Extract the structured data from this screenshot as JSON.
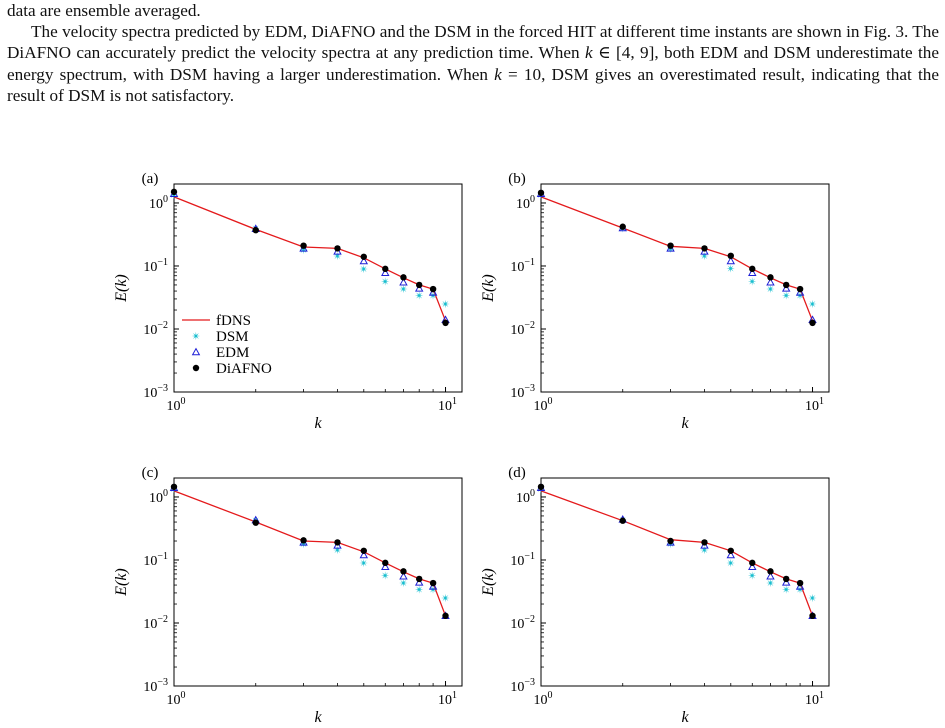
{
  "paragraph": {
    "line0": "data are ensemble averaged.",
    "p1_a": "The velocity spectra predicted by EDM, DiAFNO and the DSM in the forced HIT at different time instants are shown in Fig. 3. The DiAFNO can accurately predict the velocity spectra at any prediction time. When ",
    "p1_k1": "k",
    "p1_b": " ∈ [4, 9], both EDM and DSM underestimate the energy spectrum, with DSM having a larger underestimation. When ",
    "p1_k2": "k",
    "p1_c": " = 10, DSM gives an overestimated result, indicating that the result of DSM is not satisfactory."
  },
  "colors": {
    "fDNS": "#e41a1c",
    "DSM": "#17becf",
    "EDM": "#1f1fd6",
    "DiAFNO": "#000000"
  },
  "chart_data": [
    {
      "type": "line",
      "panel_label": "(a)",
      "xlabel": "k",
      "ylabel": "E(k)",
      "xscale": "log",
      "yscale": "log",
      "xlim": [
        1,
        11.5
      ],
      "ylim": [
        0.001,
        2
      ],
      "x_ticks": [
        "10^0",
        "10^1"
      ],
      "y_ticks": [
        "10^-3",
        "10^-2",
        "10^-1",
        "10^0"
      ],
      "legend": "lower-left",
      "x": [
        1,
        2,
        3,
        4,
        5,
        6,
        7,
        8,
        9,
        10
      ],
      "series": [
        {
          "name": "fDNS",
          "style": "line",
          "values": [
            1.25,
            0.38,
            0.2,
            0.19,
            0.135,
            0.09,
            0.065,
            0.05,
            0.043,
            0.0135
          ]
        },
        {
          "name": "DSM",
          "style": "star",
          "values": [
            1.35,
            0.39,
            0.18,
            0.145,
            0.09,
            0.057,
            0.043,
            0.034,
            0.034,
            0.025
          ]
        },
        {
          "name": "EDM",
          "style": "triangle",
          "values": [
            1.4,
            0.39,
            0.19,
            0.17,
            0.12,
            0.078,
            0.055,
            0.044,
            0.038,
            0.014
          ]
        },
        {
          "name": "DiAFNO",
          "style": "dot",
          "values": [
            1.5,
            0.37,
            0.21,
            0.19,
            0.14,
            0.09,
            0.066,
            0.05,
            0.043,
            0.0125
          ]
        }
      ]
    },
    {
      "type": "line",
      "panel_label": "(b)",
      "xlabel": "k",
      "ylabel": "E(k)",
      "xscale": "log",
      "yscale": "log",
      "xlim": [
        1,
        11.5
      ],
      "ylim": [
        0.001,
        2
      ],
      "x_ticks": [
        "10^0",
        "10^1"
      ],
      "y_ticks": [
        "10^-3",
        "10^-2",
        "10^-1",
        "10^0"
      ],
      "legend": "none",
      "x": [
        1,
        2,
        3,
        4,
        5,
        6,
        7,
        8,
        9,
        10
      ],
      "series": [
        {
          "name": "fDNS",
          "style": "line",
          "values": [
            1.25,
            0.4,
            0.205,
            0.19,
            0.14,
            0.09,
            0.065,
            0.05,
            0.043,
            0.0135
          ]
        },
        {
          "name": "DSM",
          "style": "star",
          "values": [
            1.35,
            0.39,
            0.185,
            0.145,
            0.092,
            0.057,
            0.043,
            0.034,
            0.034,
            0.025
          ]
        },
        {
          "name": "EDM",
          "style": "triangle",
          "values": [
            1.4,
            0.4,
            0.19,
            0.17,
            0.12,
            0.078,
            0.055,
            0.044,
            0.038,
            0.014
          ]
        },
        {
          "name": "DiAFNO",
          "style": "dot",
          "values": [
            1.45,
            0.42,
            0.21,
            0.19,
            0.145,
            0.09,
            0.066,
            0.05,
            0.043,
            0.0125
          ]
        }
      ]
    },
    {
      "type": "line",
      "panel_label": "(c)",
      "xlabel": "k",
      "ylabel": "E(k)",
      "xscale": "log",
      "yscale": "log",
      "xlim": [
        1,
        11.5
      ],
      "ylim": [
        0.001,
        2
      ],
      "x_ticks": [
        "10^0",
        "10^1"
      ],
      "y_ticks": [
        "10^-3",
        "10^-2",
        "10^-1",
        "10^0"
      ],
      "legend": "none",
      "x": [
        1,
        2,
        3,
        4,
        5,
        6,
        7,
        8,
        9,
        10
      ],
      "series": [
        {
          "name": "fDNS",
          "style": "line",
          "values": [
            1.25,
            0.4,
            0.2,
            0.19,
            0.135,
            0.09,
            0.065,
            0.05,
            0.043,
            0.013
          ]
        },
        {
          "name": "DSM",
          "style": "star",
          "values": [
            1.35,
            0.42,
            0.18,
            0.145,
            0.09,
            0.057,
            0.043,
            0.034,
            0.034,
            0.025
          ]
        },
        {
          "name": "EDM",
          "style": "triangle",
          "values": [
            1.4,
            0.43,
            0.19,
            0.17,
            0.12,
            0.078,
            0.055,
            0.044,
            0.038,
            0.013
          ]
        },
        {
          "name": "DiAFNO",
          "style": "dot",
          "values": [
            1.45,
            0.39,
            0.205,
            0.19,
            0.14,
            0.09,
            0.066,
            0.05,
            0.043,
            0.013
          ]
        }
      ]
    },
    {
      "type": "line",
      "panel_label": "(d)",
      "xlabel": "k",
      "ylabel": "E(k)",
      "xscale": "log",
      "yscale": "log",
      "xlim": [
        1,
        11.5
      ],
      "ylim": [
        0.001,
        2
      ],
      "x_ticks": [
        "10^0",
        "10^1"
      ],
      "y_ticks": [
        "10^-3",
        "10^-2",
        "10^-1",
        "10^0"
      ],
      "legend": "none",
      "x": [
        1,
        2,
        3,
        4,
        5,
        6,
        7,
        8,
        9,
        10
      ],
      "series": [
        {
          "name": "fDNS",
          "style": "line",
          "values": [
            1.25,
            0.42,
            0.21,
            0.19,
            0.14,
            0.09,
            0.065,
            0.05,
            0.043,
            0.013
          ]
        },
        {
          "name": "DSM",
          "style": "star",
          "values": [
            1.35,
            0.43,
            0.18,
            0.145,
            0.09,
            0.057,
            0.043,
            0.034,
            0.034,
            0.025
          ]
        },
        {
          "name": "EDM",
          "style": "triangle",
          "values": [
            1.4,
            0.44,
            0.19,
            0.17,
            0.12,
            0.078,
            0.055,
            0.044,
            0.038,
            0.013
          ]
        },
        {
          "name": "DiAFNO",
          "style": "dot",
          "values": [
            1.45,
            0.42,
            0.2,
            0.19,
            0.14,
            0.09,
            0.066,
            0.05,
            0.043,
            0.013
          ]
        }
      ]
    }
  ]
}
